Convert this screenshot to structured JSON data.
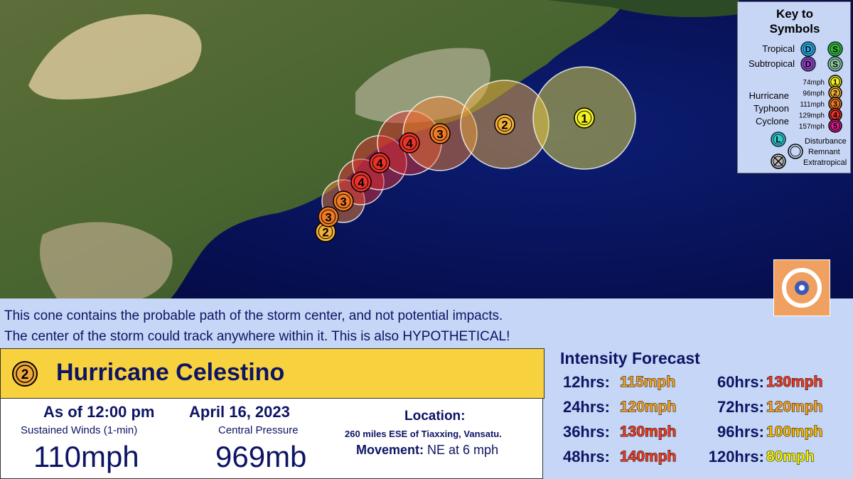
{
  "track": [
    {
      "label": "2"
    },
    {
      "label": "3"
    },
    {
      "label": "3"
    },
    {
      "label": "4"
    },
    {
      "label": "4"
    },
    {
      "label": "4"
    },
    {
      "label": "3"
    },
    {
      "label": "2"
    },
    {
      "label": "1"
    }
  ],
  "key": {
    "title": "Key to Symbols",
    "tropical": {
      "label": "Tropical",
      "symbols": [
        "D",
        "S"
      ]
    },
    "subtropical": {
      "label": "Subtropical",
      "symbols": [
        "D",
        "S"
      ]
    },
    "thresholds": [
      "74mph",
      "96mph",
      "111mph",
      "129mph",
      "157mph"
    ],
    "categories": [
      "1",
      "2",
      "3",
      "4",
      "5"
    ],
    "names": [
      "Hurricane",
      "Typhoon",
      "Cyclone"
    ],
    "disturbance": {
      "symbol": "L",
      "label": "Disturbance"
    },
    "remnant": "Remnant",
    "extratropical": "Extratropical"
  },
  "disclaimer": [
    "This cone contains the probable path of the storm center, and not potential impacts.",
    "The center of the storm could track anywhere within it. This is also HYPOTHETICAL!"
  ],
  "storm": {
    "category": "2",
    "name": "Hurricane Celestino",
    "as_of": "As of 12:00 pm",
    "date": "April 16, 2023",
    "winds_label": "Sustained Winds (1-min)",
    "winds": "110mph",
    "pressure_label": "Central Pressure",
    "pressure": "969mb",
    "location_label": "Location:",
    "location": "260 miles ESE of Tiaxxing, Vansatu.",
    "movement_label": "Movement:",
    "movement": "NE at 6 mph"
  },
  "forecast": {
    "title": "Intensity Forecast",
    "entries": [
      {
        "time": "12hrs:",
        "speed": "115mph",
        "color": "#f5a020"
      },
      {
        "time": "24hrs:",
        "speed": "120mph",
        "color": "#f5a020"
      },
      {
        "time": "36hrs:",
        "speed": "130mph",
        "color": "#f03a20"
      },
      {
        "time": "48hrs:",
        "speed": "140mph",
        "color": "#f03a20"
      },
      {
        "time": "60hrs:",
        "speed": "130mph",
        "color": "#f03a20"
      },
      {
        "time": "72hrs:",
        "speed": "120mph",
        "color": "#f5a020"
      },
      {
        "time": "96hrs:",
        "speed": "100mph",
        "color": "#f5b800"
      },
      {
        "time": "120hrs:",
        "speed": "80mph",
        "color": "#f2f000"
      }
    ]
  }
}
